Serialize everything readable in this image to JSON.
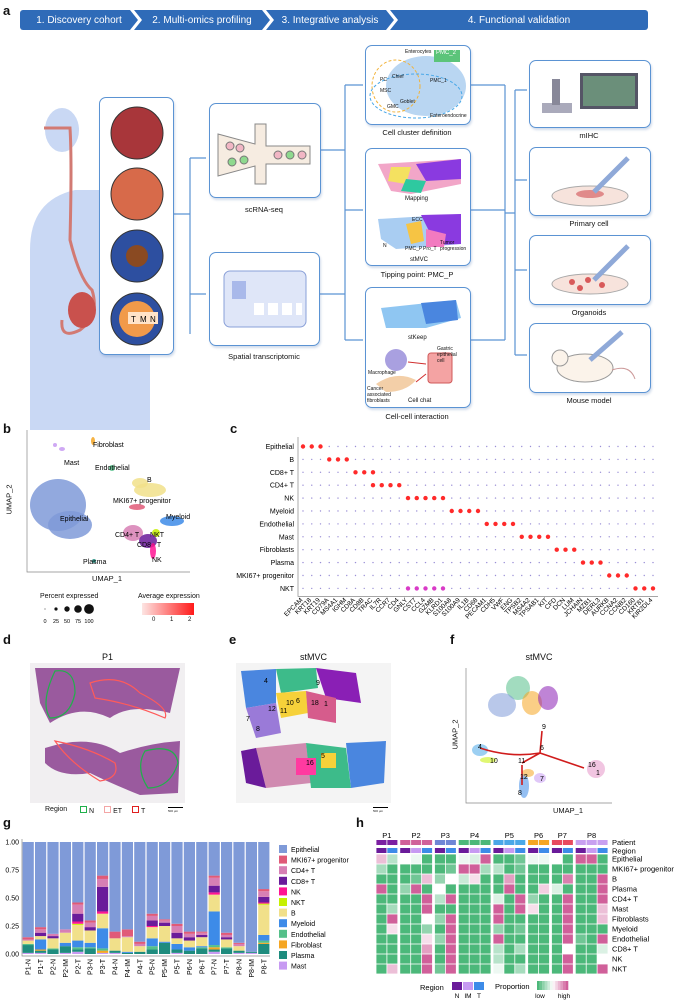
{
  "panel_letters": {
    "a": "a",
    "b": "b",
    "c": "c",
    "d": "d",
    "e": "e",
    "f": "f",
    "g": "g",
    "h": "h"
  },
  "workflow": {
    "steps": [
      "1. Discovery cohort",
      "2. Multi-omics profiling",
      "3. Integrative analysis",
      "4. Functional validation"
    ],
    "step_color": "#2f6bb8",
    "tissue_labels": [
      "T",
      "M",
      "N"
    ],
    "profiling": {
      "scrna": "scRNA-seq",
      "spatial": "Spatial transcriptomic"
    },
    "analysis": {
      "cluster_caption": "Cell cluster definition",
      "cluster_tags": [
        "PMC_2",
        "PMC_1",
        "Enterocytes",
        "Chief",
        "PC",
        "MSC",
        "GMC",
        "Goblet",
        "Enteroendocrine"
      ],
      "mapping": "Mapping",
      "stmvc": "stMVC",
      "stmvc_tags": [
        "ECC",
        "N",
        "PMC_P",
        "Pro_T",
        "Tumor progression"
      ],
      "tipping_caption": "Tipping point: PMC_P",
      "stkeep": "stKeep",
      "chat_tags": [
        "Gastric epithelial cell",
        "Macrophage",
        "Cancer associated fibroblasts"
      ],
      "cellchat": "Cell chat",
      "interaction_caption": "Cell-cell interaction"
    },
    "validation": [
      "mIHC",
      "Primary cell",
      "Organoids",
      "Mouse model"
    ]
  },
  "umap_b": {
    "xlabel": "UMAP_1",
    "ylabel": "UMAP_2",
    "clusters": [
      {
        "name": "Fibroblast",
        "color": "#f5a623"
      },
      {
        "name": "Mast",
        "color": "#c79af2"
      },
      {
        "name": "Endothelial",
        "color": "#55c08a"
      },
      {
        "name": "B",
        "color": "#f1e08a"
      },
      {
        "name": "MKI67+ progenitor",
        "color": "#e05a78"
      },
      {
        "name": "Epithelial",
        "color": "#7f9ad8"
      },
      {
        "name": "Myeloid",
        "color": "#3d8be8"
      },
      {
        "name": "CD4+ T",
        "color": "#d77fb4"
      },
      {
        "name": "NKT",
        "color": "#c6f000"
      },
      {
        "name": "CD8+ T",
        "color": "#6a1b9a"
      },
      {
        "name": "NK",
        "color": "#ff1493"
      },
      {
        "name": "Plasma",
        "color": "#1e8c7e"
      }
    ]
  },
  "dotplot_c": {
    "type": "dotplot",
    "rows": [
      "Epithelial",
      "B",
      "CD8+ T",
      "CD4+ T",
      "NK",
      "Myeloid",
      "Endothelial",
      "Mast",
      "Fibroblasts",
      "Plasma",
      "MKI67+ progenitor",
      "NKT"
    ],
    "genes": [
      "EPCAM",
      "KRT18",
      "KRT19",
      "CD79A",
      "MS4A1",
      "IGHM",
      "CD8A",
      "CD8B",
      "TRAC",
      "IL7R",
      "CCR7",
      "CD4",
      "GNLY",
      "CST7",
      "CCL4",
      "GZMB",
      "KLRD1",
      "S100A8",
      "S100A9",
      "IL1B",
      "CD68",
      "PECAM1",
      "CDH5",
      "VWF",
      "ENG",
      "TPSB2",
      "MS4A2",
      "TPSAB1",
      "KIT",
      "CFD",
      "DCN",
      "LUM",
      "JCHAIN",
      "MZB1",
      "DERL3",
      "AURKB",
      "CCNA2",
      "CCNB2",
      "CD160",
      "KRT81",
      "KIR2DL4"
    ],
    "markers": {
      "Epithelial": [
        0,
        1,
        2
      ],
      "B": [
        3,
        4,
        5
      ],
      "CD8+ T": [
        6,
        7,
        8
      ],
      "CD4+ T": [
        8,
        9,
        10,
        11
      ],
      "NK": [
        12,
        13,
        14,
        15,
        16
      ],
      "Myeloid": [
        17,
        18,
        19,
        20
      ],
      "Endothelial": [
        21,
        22,
        23,
        24
      ],
      "Mast": [
        25,
        26,
        27,
        28
      ],
      "Fibroblasts": [
        29,
        30,
        31
      ],
      "Plasma": [
        32,
        33,
        34
      ],
      "MKI67+ progenitor": [
        35,
        36,
        37
      ],
      "NKT": [
        38,
        39,
        40,
        12,
        13,
        14,
        15,
        16
      ]
    },
    "legend": {
      "size_title": "Percent expressed",
      "size_ticks": [
        "0",
        "25",
        "50",
        "75",
        "100"
      ],
      "color_title": "Average expression",
      "color_ticks": [
        "0",
        "1",
        "2"
      ],
      "low_color": "#fde5e3",
      "high_color": "#ff1a1a"
    }
  },
  "he_d": {
    "title": "P1",
    "legend_title": "Region",
    "legend": [
      {
        "label": "N",
        "color": "#20b04b"
      },
      {
        "label": "ET",
        "color": "#f4a6a6"
      },
      {
        "label": "T",
        "color": "#e02020"
      }
    ],
    "scale": "500 μm"
  },
  "spatial_e": {
    "title": "stMVC",
    "cluster_numbers": [
      "4",
      "10",
      "6",
      "9",
      "12",
      "11",
      "7",
      "8",
      "18",
      "1",
      "16",
      "5"
    ],
    "scale": "500 μm"
  },
  "umap_f": {
    "title": "stMVC",
    "xlabel": "UMAP_1",
    "ylabel": "UMAP_2",
    "nodes": [
      "4",
      "10",
      "6",
      "9",
      "11",
      "12",
      "7",
      "8",
      "16",
      "1"
    ]
  },
  "chart_data": {
    "type": "bar",
    "stacked": true,
    "categories": [
      "P1-N",
      "P1-T",
      "P2-N",
      "P2-IM",
      "P2-T",
      "P3-N",
      "P3-T",
      "P4-N",
      "P4-IM",
      "P4-T",
      "P5-N",
      "P5-IM",
      "P5-T",
      "P6-N",
      "P6-T",
      "P7-N",
      "P7-T",
      "P8-N",
      "P8-IM",
      "P8-T"
    ],
    "ylim": [
      0,
      1
    ],
    "yticks": [
      "0.00",
      "0.25",
      "0.50",
      "0.75",
      "1.00"
    ],
    "legend_position": "right",
    "series": [
      {
        "name": "Epithelial",
        "color": "#7f9ad8",
        "values": [
          0.85,
          0.76,
          0.82,
          0.78,
          0.54,
          0.7,
          0.3,
          0.8,
          0.78,
          0.89,
          0.64,
          0.69,
          0.73,
          0.8,
          0.8,
          0.3,
          0.81,
          0.9,
          0.98,
          0.42
        ]
      },
      {
        "name": "MKI67+ progenitor",
        "color": "#e05a78",
        "values": [
          0.02,
          0.02,
          0,
          0,
          0.02,
          0.02,
          0.03,
          0.06,
          0.06,
          0.02,
          0.02,
          0.01,
          0.02,
          0.02,
          0.01,
          0.02,
          0.02,
          0.01,
          0,
          0.02
        ]
      },
      {
        "name": "CD4+ T",
        "color": "#d77fb4",
        "values": [
          0.01,
          0.03,
          0.02,
          0.03,
          0.08,
          0.04,
          0.07,
          0,
          0.01,
          0.02,
          0.04,
          0.02,
          0.06,
          0.03,
          0.02,
          0.07,
          0.02,
          0.02,
          0,
          0.05
        ]
      },
      {
        "name": "CD8+ T",
        "color": "#6a1b9a",
        "values": [
          0,
          0.03,
          0.02,
          0,
          0.07,
          0.03,
          0.22,
          0,
          0,
          0,
          0.05,
          0.03,
          0.05,
          0.03,
          0.02,
          0.06,
          0.02,
          0,
          0,
          0.05
        ]
      },
      {
        "name": "NK",
        "color": "#ff1493",
        "values": [
          0,
          0,
          0,
          0,
          0.02,
          0,
          0.02,
          0,
          0,
          0,
          0.01,
          0,
          0,
          0,
          0,
          0.02,
          0,
          0,
          0,
          0.01
        ]
      },
      {
        "name": "NKT",
        "color": "#c6f000",
        "values": [
          0,
          0,
          0,
          0,
          0.01,
          0,
          0,
          0,
          0,
          0,
          0,
          0,
          0,
          0,
          0,
          0,
          0,
          0,
          0,
          0.01
        ]
      },
      {
        "name": "B",
        "color": "#f1e08a",
        "values": [
          0.03,
          0.03,
          0.09,
          0.09,
          0.14,
          0.11,
          0.13,
          0.11,
          0.13,
          0.05,
          0.1,
          0.14,
          0.05,
          0.06,
          0.08,
          0.15,
          0.07,
          0.04,
          0,
          0.27
        ]
      },
      {
        "name": "Myeloid",
        "color": "#3d8be8",
        "values": [
          0,
          0.09,
          0,
          0.03,
          0.06,
          0.04,
          0.18,
          0,
          0.01,
          0,
          0.07,
          0.01,
          0.05,
          0.03,
          0.01,
          0.3,
          0,
          0,
          0,
          0.05
        ]
      },
      {
        "name": "Endothelial",
        "color": "#55c08a",
        "values": [
          0.01,
          0,
          0.01,
          0,
          0.02,
          0.01,
          0.02,
          0,
          0,
          0,
          0.03,
          0,
          0,
          0,
          0.01,
          0.02,
          0.01,
          0,
          0,
          0.02
        ]
      },
      {
        "name": "Fibroblast",
        "color": "#f5a623",
        "values": [
          0,
          0.01,
          0,
          0,
          0,
          0,
          0.02,
          0,
          0,
          0,
          0,
          0,
          0,
          0,
          0,
          0.02,
          0,
          0,
          0,
          0.01
        ]
      },
      {
        "name": "Plasma",
        "color": "#1e8c7e",
        "values": [
          0.07,
          0.02,
          0.04,
          0.06,
          0.02,
          0.05,
          0,
          0.02,
          0.01,
          0.02,
          0.04,
          0.1,
          0.03,
          0.03,
          0.05,
          0.02,
          0.05,
          0.02,
          0.01,
          0.09
        ]
      },
      {
        "name": "Mast",
        "color": "#c79af2",
        "values": [
          0.01,
          0.01,
          0,
          0.01,
          0.02,
          0,
          0.01,
          0.01,
          0,
          0,
          0,
          0,
          0.01,
          0,
          0,
          0.02,
          0,
          0.01,
          0.01,
          0
        ]
      }
    ]
  },
  "heatmap_h": {
    "type": "heatmap",
    "patients": [
      {
        "name": "P1",
        "n": 2,
        "color": "#7b1fa2"
      },
      {
        "name": "P2",
        "n": 3,
        "color": "#d0609a"
      },
      {
        "name": "P3",
        "n": 2,
        "color": "#6f86d6"
      },
      {
        "name": "P4",
        "n": 3,
        "color": "#4cb87a"
      },
      {
        "name": "P5",
        "n": 3,
        "color": "#4aa8e8"
      },
      {
        "name": "P6",
        "n": 2,
        "color": "#f5a623"
      },
      {
        "name": "P7",
        "n": 2,
        "color": "#e84a5f"
      },
      {
        "name": "P8",
        "n": 3,
        "color": "#c8a0f0"
      }
    ],
    "regions": [
      "N",
      "T",
      "N",
      "IM",
      "T",
      "N",
      "T",
      "N",
      "IM",
      "T",
      "N",
      "IM",
      "T",
      "N",
      "T",
      "N",
      "T",
      "N",
      "IM",
      "T"
    ],
    "region_colors": {
      "N": "#6a1b9a",
      "IM": "#c79af2",
      "T": "#3d8be8"
    },
    "annotation_rows": [
      "Patient",
      "Region"
    ],
    "rows": [
      "Epithelial",
      "MKI67+ progenitor",
      "B",
      "Plasma",
      "CD4+ T",
      "Mast",
      "Fibroblasts",
      "Myeloid",
      "Endothelial",
      "CD8+ T",
      "NK",
      "NKT"
    ],
    "values": [
      [
        0.7,
        0.3,
        0.5,
        0.45,
        0,
        0,
        0,
        0.45,
        0.4,
        1,
        0,
        0,
        0.1,
        0.45,
        0.45,
        0.5,
        0,
        1,
        1,
        0
      ],
      [
        0.25,
        0,
        0,
        0,
        0,
        0,
        0.1,
        1,
        1,
        0.25,
        0.3,
        0,
        0.1,
        0,
        0,
        0,
        0,
        0,
        0,
        0
      ],
      [
        0,
        0,
        0,
        0.1,
        0.7,
        0.2,
        0.5,
        0.35,
        0.6,
        0,
        0,
        0.8,
        0,
        0,
        0,
        0,
        0.9,
        0,
        0,
        1
      ],
      [
        1,
        0,
        0.2,
        1,
        0,
        0.5,
        0,
        0,
        0,
        0,
        0,
        1,
        0,
        0,
        0.65,
        0.4,
        0,
        0,
        0,
        1
      ],
      [
        0,
        0,
        0,
        0,
        1,
        0.3,
        1,
        0,
        0,
        0,
        0.4,
        0,
        1,
        0.2,
        0,
        0,
        1,
        0,
        0,
        1
      ],
      [
        0,
        0.25,
        0,
        0,
        1,
        0,
        0,
        0,
        0,
        0,
        1,
        0,
        1,
        0.6,
        0,
        0,
        1,
        0,
        0,
        0.7
      ],
      [
        0,
        1,
        0,
        0,
        0.5,
        0.2,
        1,
        0,
        0,
        0,
        1,
        0,
        0,
        0,
        0,
        0,
        1,
        0,
        0,
        0.7
      ],
      [
        0,
        0.6,
        0,
        0,
        0.2,
        0,
        1,
        0,
        0,
        0,
        0.2,
        0,
        0.1,
        0,
        0,
        0,
        1,
        0,
        0,
        0
      ],
      [
        0,
        0,
        0,
        0,
        0.6,
        0.2,
        1,
        0,
        0,
        0,
        1,
        0,
        0,
        0,
        0,
        0,
        1,
        0.1,
        0,
        1
      ],
      [
        0,
        0,
        0,
        0,
        0.8,
        0,
        1,
        0,
        0,
        0,
        0.3,
        0,
        0.25,
        0,
        0,
        0,
        0.5,
        0,
        0,
        0.4
      ],
      [
        0,
        0,
        0,
        0,
        1,
        0,
        1,
        0,
        0,
        0,
        0.3,
        0,
        0,
        0,
        0,
        0,
        1,
        0,
        0,
        0.5
      ],
      [
        0,
        0.7,
        0,
        0,
        1,
        0.1,
        1,
        0,
        0,
        0,
        0.45,
        0,
        0.25,
        0,
        0,
        0,
        1,
        0,
        0,
        1
      ]
    ],
    "legend": {
      "region_title": "Region",
      "region_labels": [
        "N",
        "IM",
        "T"
      ],
      "proportion_title": "Proportion",
      "low": "low",
      "high": "high",
      "low_color": "#4cb87a",
      "mid_color": "#ffffff",
      "high_color": "#d0609a"
    }
  }
}
